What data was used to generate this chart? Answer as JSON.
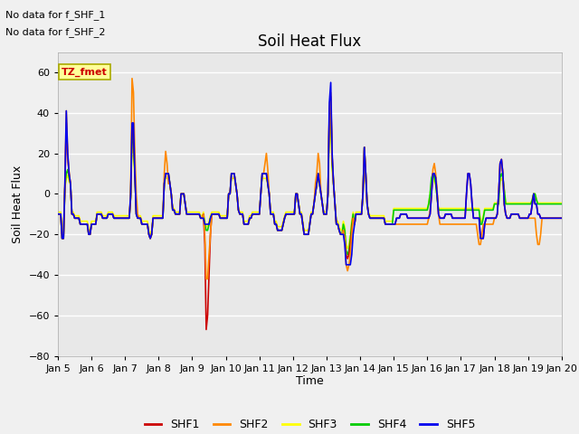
{
  "title": "Soil Heat Flux",
  "ylabel": "Soil Heat Flux",
  "xlabel": "Time",
  "ylim": [
    -80,
    70
  ],
  "xlim": [
    0,
    360
  ],
  "annotations": [
    "No data for f_SHF_1",
    "No data for f_SHF_2"
  ],
  "tz_label": "TZ_fmet",
  "x_tick_labels": [
    "Jan 5",
    "Jan 6",
    "Jan 7",
    "Jan 8",
    "Jan 9",
    "Jan 10",
    "Jan 11",
    "Jan 12",
    "Jan 13",
    "Jan 14",
    "Jan 15",
    "Jan 16",
    "Jan 17",
    "Jan 18",
    "Jan 19",
    "Jan 20"
  ],
  "x_tick_positions": [
    0,
    24,
    48,
    72,
    96,
    120,
    144,
    168,
    192,
    216,
    240,
    264,
    288,
    312,
    336,
    360
  ],
  "colors": {
    "SHF1": "#cc0000",
    "SHF2": "#ff8800",
    "SHF3": "#ffff00",
    "SHF4": "#00cc00",
    "SHF5": "#0000ee"
  },
  "bg_color": "#e8e8e8",
  "grid_color": "#ffffff",
  "title_fontsize": 12,
  "axis_fontsize": 9,
  "tick_fontsize": 8,
  "linewidth": 1.2
}
